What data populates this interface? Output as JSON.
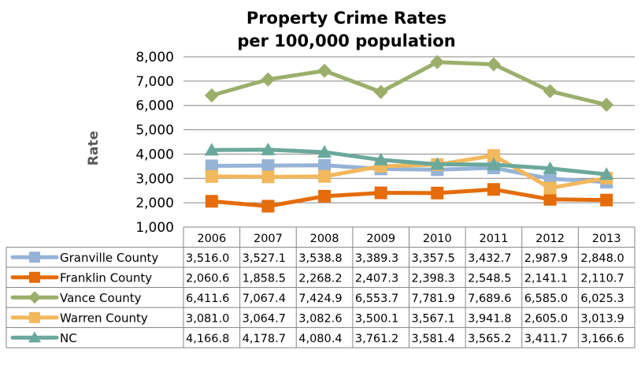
{
  "chart_data": {
    "type": "line",
    "title_lines": [
      "Property Crime Rates",
      "per 100,000 population"
    ],
    "ylabel": "Rate",
    "xlabel": "",
    "ylim": [
      1000,
      8000
    ],
    "y_ticks": [
      "1,000",
      "2,000",
      "3,000",
      "4,000",
      "5,000",
      "6,000",
      "7,000",
      "8,000"
    ],
    "grid": true,
    "legend": "data-table",
    "categories": [
      "2006",
      "2007",
      "2008",
      "2009",
      "2010",
      "2011",
      "2012",
      "2013"
    ],
    "series": [
      {
        "name": "Granville County",
        "color": "#95B3D7",
        "values": [
          3516.0,
          3527.1,
          3538.8,
          3389.3,
          3357.5,
          3432.7,
          2987.9,
          2848.0
        ],
        "labels": [
          "3,516.0",
          "3,527.1",
          "3,538.8",
          "3,389.3",
          "3,357.5",
          "3,432.7",
          "2,987.9",
          "2,848.0"
        ]
      },
      {
        "name": "Franklin County",
        "color": "#E46C0A",
        "values": [
          2060.6,
          1858.5,
          2268.2,
          2407.3,
          2398.3,
          2548.5,
          2141.1,
          2110.7
        ],
        "labels": [
          "2,060.6",
          "1,858.5",
          "2,268.2",
          "2,407.3",
          "2,398.3",
          "2,548.5",
          "2,141.1",
          "2,110.7"
        ]
      },
      {
        "name": "Vance County",
        "color": "#9BAF6B",
        "values": [
          6411.6,
          7067.4,
          7424.9,
          6553.7,
          7781.9,
          7689.6,
          6585.0,
          6025.3
        ],
        "labels": [
          "6,411.6",
          "7,067.4",
          "7,424.9",
          "6,553.7",
          "7,781.9",
          "7,689.6",
          "6,585.0",
          "6,025.3"
        ]
      },
      {
        "name": "Warren County",
        "color": "#F2B85C",
        "values": [
          3081.0,
          3064.7,
          3082.6,
          3500.1,
          3567.1,
          3941.8,
          2605.0,
          3013.9
        ],
        "labels": [
          "3,081.0",
          "3,064.7",
          "3,082.6",
          "3,500.1",
          "3,567.1",
          "3,941.8",
          "2,605.0",
          "3,013.9"
        ]
      },
      {
        "name": "NC",
        "color": "#6AA89C",
        "values": [
          4166.8,
          4178.7,
          4080.4,
          3761.2,
          3581.4,
          3565.2,
          3411.7,
          3166.6
        ],
        "labels": [
          "4,166.8",
          "4,178.7",
          "4,080.4",
          "3,761.2",
          "3,581.4",
          "3,565.2",
          "3,411.7",
          "3,166.6"
        ]
      }
    ]
  }
}
